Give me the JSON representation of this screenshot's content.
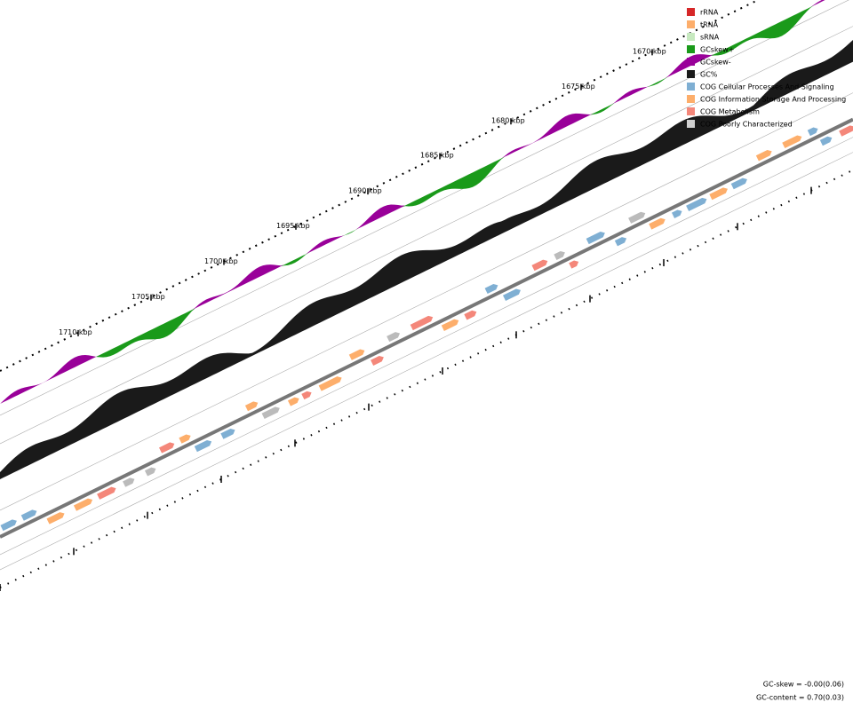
{
  "ruler": {
    "labels": [
      "1670 kbp",
      "1675 kbp",
      "1680 kbp",
      "1685 kbp",
      "1690 kbp",
      "1695 kbp",
      "1700 kbp",
      "1705 kbp",
      "1710 kbp"
    ]
  },
  "legend": [
    {
      "label": "rRNA",
      "color": "#d62728"
    },
    {
      "label": "tRNA",
      "color": "#fdae6b"
    },
    {
      "label": "sRNA",
      "color": "#c7e9c0"
    },
    {
      "label": "GCskew+",
      "color": "#1a9a1a"
    },
    {
      "label": "GCskew-",
      "color": "#990099"
    },
    {
      "label": "GC%",
      "color": "#1a1a1a"
    },
    {
      "label": "COG Cellular Processes And Signaling",
      "color": "#7fafd3"
    },
    {
      "label": "COG Information Storage And Processing",
      "color": "#fdae6b"
    },
    {
      "label": "COG Metabolism",
      "color": "#f4877a"
    },
    {
      "label": "COG Poorly Characterized",
      "color": "#d0d0d0"
    }
  ],
  "footer": [
    "GC-skew = -0.00(0.06)",
    "GC-content = 0.70(0.03)"
  ]
}
